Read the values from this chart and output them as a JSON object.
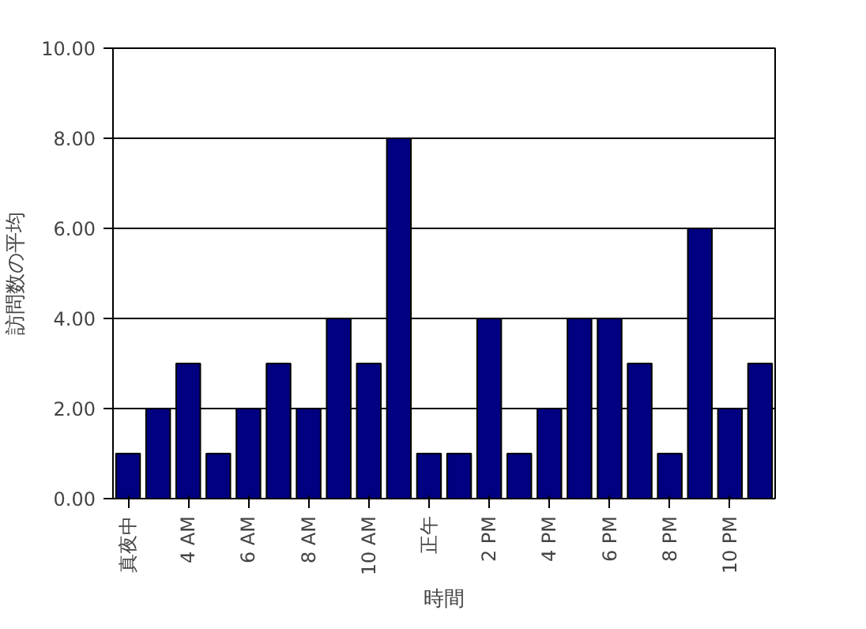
{
  "chart_data": {
    "type": "bar",
    "xlabel": "時間",
    "ylabel": "訪問数の平均",
    "categories": [
      "真夜中",
      null,
      "4 AM",
      null,
      "6 AM",
      null,
      "8 AM",
      null,
      "10 AM",
      null,
      "正午",
      null,
      "2 PM",
      null,
      "4 PM",
      null,
      "6 PM",
      null,
      "8 PM",
      null,
      "10 PM",
      null
    ],
    "values": [
      1,
      2,
      3,
      1,
      2,
      3,
      2,
      4,
      3,
      8,
      1,
      1,
      4,
      1,
      2,
      4,
      4,
      3,
      1,
      6,
      2,
      3
    ],
    "color": "#000080",
    "ylim": [
      0,
      10
    ],
    "yticks": [
      {
        "value": 0,
        "label": "0.00"
      },
      {
        "value": 2,
        "label": "2.00"
      },
      {
        "value": 4,
        "label": "4.00"
      },
      {
        "value": 6,
        "label": "6.00"
      },
      {
        "value": 8,
        "label": "8.00"
      },
      {
        "value": 10,
        "label": "10.00"
      }
    ],
    "grid": "y"
  }
}
